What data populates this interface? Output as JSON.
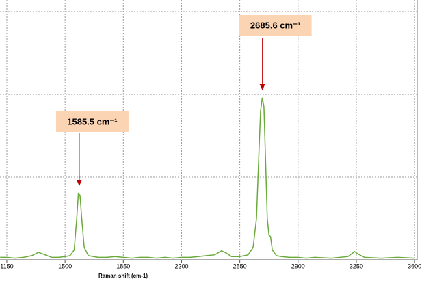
{
  "chart_data": {
    "type": "line",
    "x_label": "Raman shift (cm-1)",
    "x": [
      1110,
      1150,
      1200,
      1250,
      1300,
      1340,
      1380,
      1420,
      1460,
      1500,
      1530,
      1555,
      1570,
      1580,
      1590,
      1600,
      1615,
      1640,
      1700,
      1750,
      1800,
      1850,
      1900,
      1950,
      2000,
      2050,
      2100,
      2150,
      2200,
      2250,
      2300,
      2350,
      2400,
      2440,
      2470,
      2500,
      2550,
      2600,
      2630,
      2650,
      2665,
      2675,
      2685,
      2695,
      2705,
      2715,
      2725,
      2735,
      2745,
      2770,
      2800,
      2850,
      2900,
      2950,
      3000,
      3100,
      3200,
      3240,
      3260,
      3300,
      3400,
      3500,
      3600
    ],
    "series": [
      {
        "color": "#6aaa3a",
        "values": [
          0.03,
          0.03,
          0.02,
          0.03,
          0.05,
          0.09,
          0.06,
          0.03,
          0.03,
          0.04,
          0.05,
          0.12,
          0.5,
          0.8,
          0.78,
          0.5,
          0.15,
          0.05,
          0.03,
          0.03,
          0.04,
          0.03,
          0.02,
          0.03,
          0.03,
          0.02,
          0.03,
          0.02,
          0.03,
          0.03,
          0.04,
          0.05,
          0.06,
          0.11,
          0.08,
          0.04,
          0.04,
          0.06,
          0.15,
          0.5,
          1.3,
          1.8,
          1.96,
          1.85,
          1.2,
          0.5,
          0.3,
          0.28,
          0.12,
          0.05,
          0.04,
          0.03,
          0.03,
          0.02,
          0.03,
          0.02,
          0.04,
          0.1,
          0.07,
          0.03,
          0.02,
          0.03,
          0.02
        ]
      }
    ],
    "xlim": [
      1109,
      3616
    ],
    "ylim": [
      0,
      3.14
    ],
    "xticks": [
      1150,
      1500,
      1850,
      2200,
      2550,
      2900,
      3250,
      3600
    ],
    "grid": true,
    "annotations": [
      {
        "x": 1585.5,
        "text": "1585.5 cm⁻¹"
      },
      {
        "x": 2685.6,
        "text": "2685.6 cm⁻¹"
      }
    ]
  }
}
